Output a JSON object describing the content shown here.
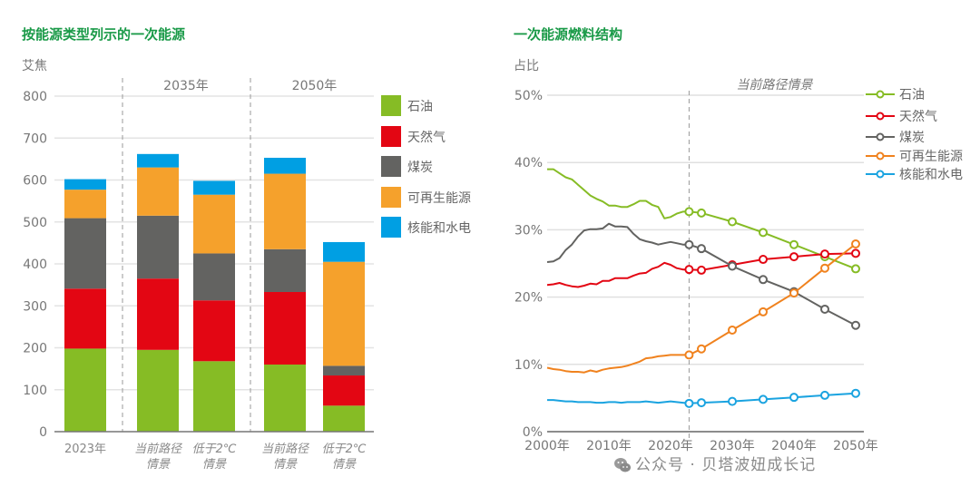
{
  "watermark": "公众号 · 贝塔波妞成长记",
  "chart_data": [
    {
      "type": "bar",
      "stacked": true,
      "title": "按能源类型列示的一次能源",
      "ylabel": "艾焦",
      "ylim": [
        0,
        800
      ],
      "yticks": [
        0,
        100,
        200,
        300,
        400,
        500,
        600,
        700,
        800
      ],
      "group_labels": [
        {
          "label": "2035年",
          "categories": [
            1,
            2
          ]
        },
        {
          "label": "2050年",
          "categories": [
            3,
            4
          ]
        }
      ],
      "categories": [
        {
          "line1": "2023年",
          "line2": "",
          "italic": false
        },
        {
          "line1": "当前路径",
          "line2": "情景",
          "italic": true
        },
        {
          "line1": "低于2℃",
          "line2": "情景",
          "italic": true
        },
        {
          "line1": "当前路径",
          "line2": "情景",
          "italic": true
        },
        {
          "line1": "低于2℃",
          "line2": "情景",
          "italic": true
        }
      ],
      "series": [
        {
          "name": "石油",
          "color": "#86bc25",
          "values": [
            198,
            195,
            168,
            160,
            62
          ]
        },
        {
          "name": "天然气",
          "color": "#e30613",
          "values": [
            143,
            170,
            145,
            173,
            72
          ]
        },
        {
          "name": "煤炭",
          "color": "#636361",
          "values": [
            168,
            150,
            112,
            102,
            23
          ]
        },
        {
          "name": "可再生能源",
          "color": "#f5a12c",
          "values": [
            68,
            115,
            140,
            180,
            248
          ]
        },
        {
          "name": "核能和水电",
          "color": "#009fe3",
          "values": [
            25,
            32,
            33,
            38,
            47
          ]
        }
      ],
      "legend_position": "right",
      "grid": true
    },
    {
      "type": "line",
      "title": "一次能源燃料结构",
      "ylabel": "占比",
      "ylim": [
        0,
        50
      ],
      "yticks": [
        0,
        10,
        20,
        30,
        40,
        50
      ],
      "ytick_labels": [
        "0%",
        "10%",
        "20%",
        "30%",
        "40%",
        "50%"
      ],
      "xlim": [
        2000,
        2050
      ],
      "xticks": [
        2000,
        2010,
        2020,
        2030,
        2040,
        2050
      ],
      "xtick_labels": [
        "2000年",
        "2010年",
        "2020年",
        "2030年",
        "2040年",
        "2050年"
      ],
      "annotation": {
        "text": "当前路径情景",
        "x": 2023
      },
      "x": [
        2000,
        2001,
        2002,
        2003,
        2004,
        2005,
        2006,
        2007,
        2008,
        2009,
        2010,
        2011,
        2012,
        2013,
        2014,
        2015,
        2016,
        2017,
        2018,
        2019,
        2020,
        2021,
        2022,
        2023
      ],
      "marker_x": [
        2023,
        2025,
        2030,
        2035,
        2040,
        2045,
        2050
      ],
      "series": [
        {
          "name": "石油",
          "color": "#86bc25",
          "history": [
            39.0,
            39.0,
            38.4,
            37.8,
            37.5,
            36.7,
            35.9,
            35.1,
            34.6,
            34.2,
            33.6,
            33.6,
            33.4,
            33.4,
            33.8,
            34.3,
            34.3,
            33.7,
            33.4,
            31.7,
            31.9,
            32.4,
            32.7,
            32.7
          ],
          "projection": [
            32.7,
            32.5,
            31.2,
            29.6,
            27.8,
            26.0,
            24.2
          ]
        },
        {
          "name": "天然气",
          "color": "#e30613",
          "history": [
            21.8,
            21.9,
            22.1,
            21.8,
            21.6,
            21.5,
            21.7,
            22.0,
            21.9,
            22.4,
            22.4,
            22.8,
            22.8,
            22.8,
            23.2,
            23.5,
            23.6,
            24.2,
            24.5,
            25.1,
            24.8,
            24.3,
            24.1,
            24.1
          ],
          "projection": [
            24.1,
            24.0,
            24.8,
            25.6,
            26.0,
            26.4,
            26.5
          ]
        },
        {
          "name": "煤炭",
          "color": "#636361",
          "history": [
            25.2,
            25.3,
            25.8,
            27.0,
            27.8,
            29.0,
            29.9,
            30.1,
            30.1,
            30.2,
            30.9,
            30.5,
            30.5,
            30.4,
            29.4,
            28.6,
            28.3,
            28.1,
            27.8,
            28.0,
            28.2,
            28.0,
            27.8,
            27.8
          ],
          "projection": [
            27.8,
            27.2,
            24.6,
            22.6,
            20.8,
            18.2,
            15.8
          ]
        },
        {
          "name": "可再生能源",
          "color": "#f0821e",
          "history": [
            9.5,
            9.3,
            9.2,
            9.0,
            8.9,
            8.9,
            8.8,
            9.1,
            8.9,
            9.2,
            9.4,
            9.5,
            9.6,
            9.8,
            10.1,
            10.4,
            10.9,
            11.0,
            11.2,
            11.3,
            11.4,
            11.4,
            11.4,
            11.4
          ],
          "projection": [
            11.4,
            12.3,
            15.1,
            17.8,
            20.6,
            24.3,
            27.9
          ]
        },
        {
          "name": "核能和水电",
          "color": "#1aa3e0",
          "history": [
            4.7,
            4.7,
            4.6,
            4.5,
            4.5,
            4.4,
            4.4,
            4.4,
            4.3,
            4.3,
            4.4,
            4.4,
            4.3,
            4.4,
            4.4,
            4.4,
            4.5,
            4.4,
            4.3,
            4.4,
            4.5,
            4.4,
            4.3,
            4.2
          ],
          "projection": [
            4.2,
            4.3,
            4.5,
            4.8,
            5.1,
            5.4,
            5.7
          ]
        }
      ],
      "legend_position": "top-right",
      "grid": true
    }
  ]
}
